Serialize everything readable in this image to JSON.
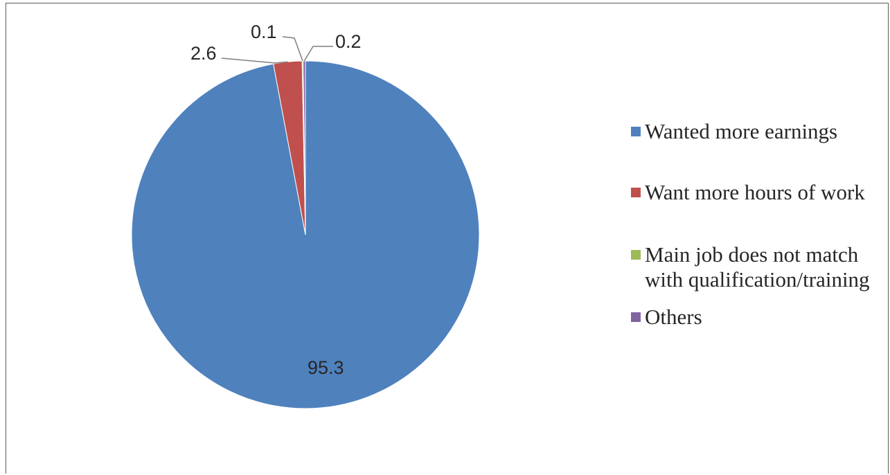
{
  "chart_data": {
    "type": "pie",
    "title": "",
    "start_angle_deg": 0,
    "direction": "clockwise",
    "legend_position": "right",
    "slices": [
      {
        "label": "Wanted more earnings",
        "value": 95.3,
        "color": "#4f81bd"
      },
      {
        "label": "Want more hours of work",
        "value": 2.6,
        "color": "#c0504d"
      },
      {
        "label": "Main job does not match with qualification/training",
        "value": 0.1,
        "color": "#9bbb59"
      },
      {
        "label": "Others",
        "value": 0.2,
        "color": "#8064a2"
      }
    ],
    "data_labels": [
      "95.3",
      "2.6",
      "0.1",
      "0.2"
    ]
  },
  "legend": {
    "items": [
      {
        "label": "Wanted more earnings",
        "color": "#4f81bd"
      },
      {
        "label": "Want more hours of work",
        "color": "#c0504d"
      },
      {
        "label": "Main job does not match\nwith qualification/training",
        "color": "#9bbb59"
      },
      {
        "label": "Others",
        "color": "#8064a2"
      }
    ]
  }
}
